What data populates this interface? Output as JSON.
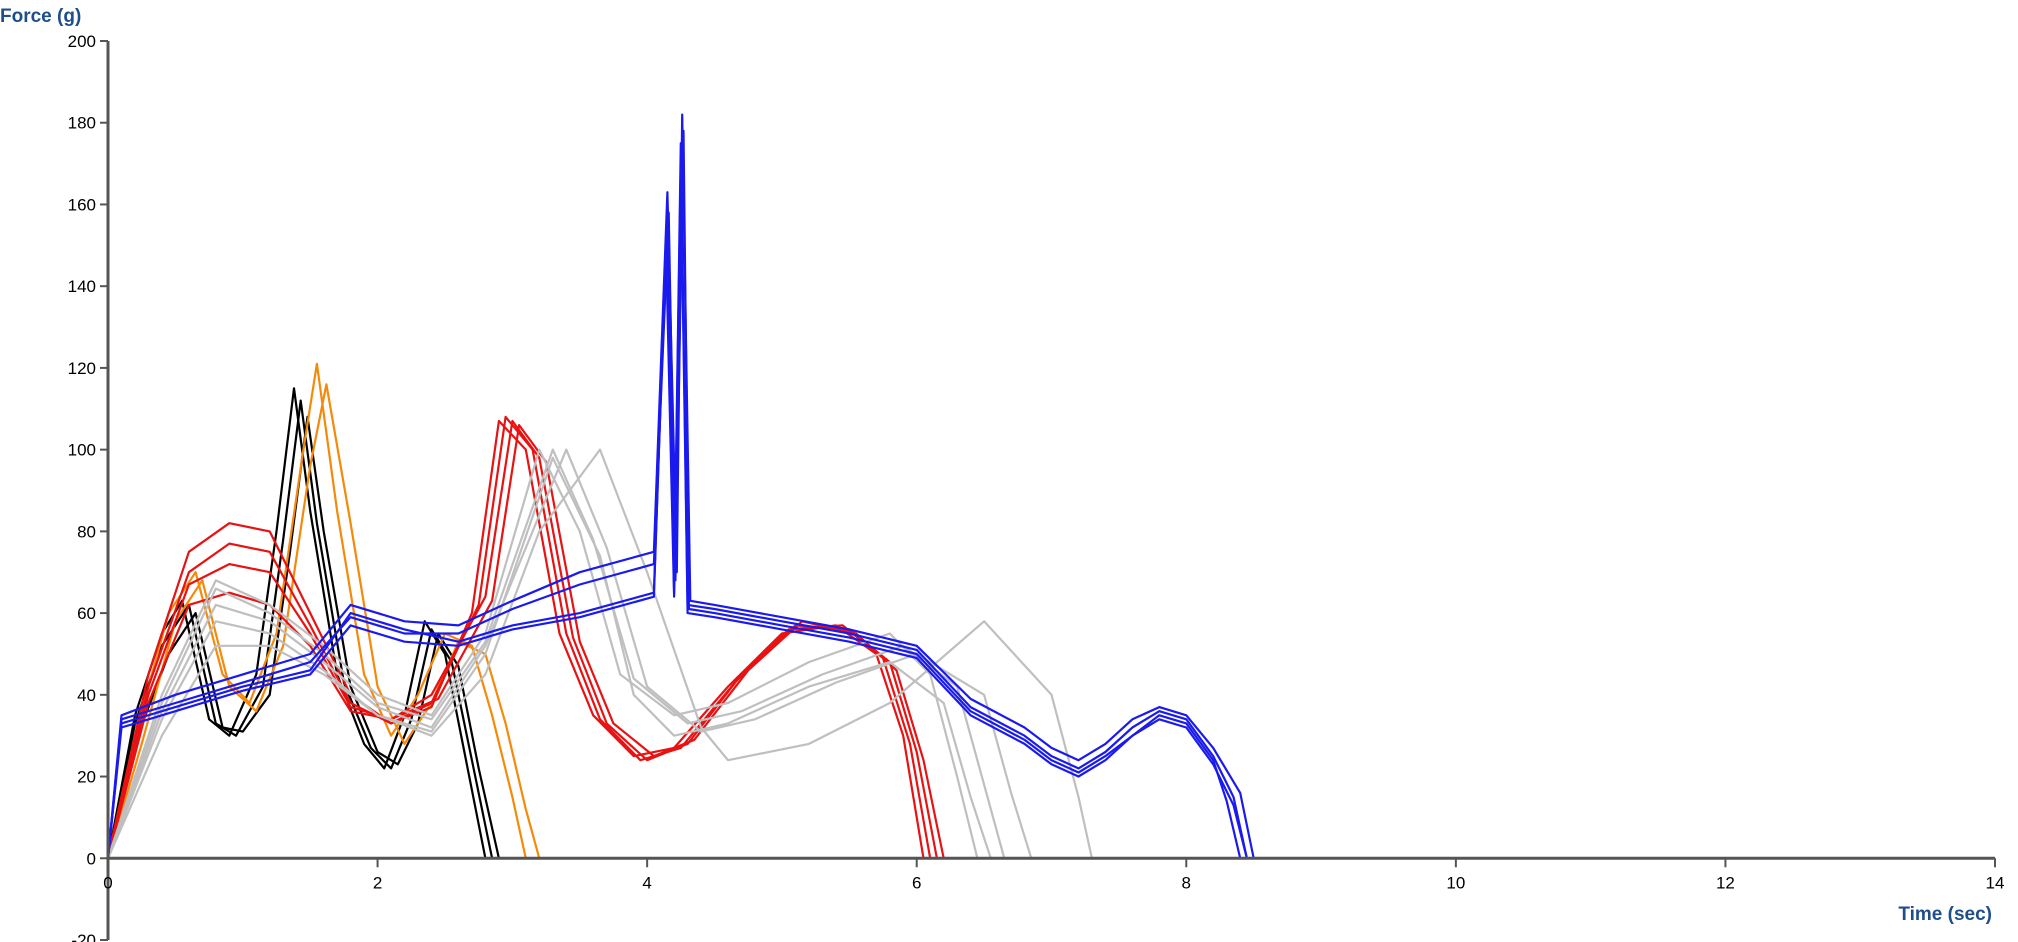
{
  "chart_data": {
    "type": "line",
    "title": "",
    "xlabel": "Time (sec)",
    "ylabel": "Force (g)",
    "xlim": [
      0,
      14
    ],
    "ylim": [
      -20,
      200
    ],
    "xticks": [
      0,
      2,
      4,
      6,
      8,
      10,
      12,
      14
    ],
    "yticks": [
      -20,
      0,
      20,
      40,
      60,
      80,
      100,
      120,
      140,
      160,
      180,
      200
    ],
    "grid": false,
    "legend": "none",
    "series": [
      {
        "color": "#000000",
        "x": [
          0,
          0.2,
          0.4,
          0.55,
          0.75,
          0.9,
          1.1,
          1.25,
          1.38,
          1.5,
          1.7,
          1.9,
          2.05,
          2.2,
          2.35,
          2.5,
          2.65,
          2.8,
          4.5
        ],
        "y": [
          0,
          35,
          55,
          63,
          34,
          30,
          45,
          80,
          115,
          85,
          45,
          28,
          22,
          35,
          58,
          50,
          25,
          0,
          0
        ]
      },
      {
        "color": "#000000",
        "x": [
          0,
          0.2,
          0.4,
          0.6,
          0.8,
          0.95,
          1.15,
          1.3,
          1.43,
          1.55,
          1.75,
          1.95,
          2.1,
          2.25,
          2.4,
          2.55,
          2.7,
          2.85
        ],
        "y": [
          0,
          33,
          52,
          62,
          33,
          30,
          42,
          78,
          112,
          82,
          43,
          27,
          22,
          34,
          56,
          48,
          24,
          0
        ]
      },
      {
        "color": "#000000",
        "x": [
          0,
          0.22,
          0.45,
          0.65,
          0.85,
          1.0,
          1.2,
          1.35,
          1.48,
          1.6,
          1.8,
          2.0,
          2.15,
          2.3,
          2.45,
          2.6,
          2.75,
          2.9
        ],
        "y": [
          0,
          30,
          50,
          60,
          32,
          31,
          40,
          75,
          108,
          80,
          42,
          26,
          23,
          33,
          55,
          47,
          22,
          0
        ]
      },
      {
        "color": "#f5890a",
        "x": [
          0,
          0.2,
          0.45,
          0.65,
          0.85,
          1.05,
          1.25,
          1.45,
          1.55,
          1.7,
          1.9,
          2.1,
          2.3,
          2.5,
          2.7,
          2.85,
          3.0,
          3.1,
          6.0
        ],
        "y": [
          0,
          30,
          60,
          70,
          45,
          38,
          55,
          100,
          121,
          85,
          45,
          30,
          40,
          55,
          52,
          35,
          15,
          0,
          0
        ]
      },
      {
        "color": "#f5890a",
        "x": [
          0,
          0.25,
          0.5,
          0.7,
          0.9,
          1.1,
          1.3,
          1.5,
          1.62,
          1.8,
          2.0,
          2.2,
          2.4,
          2.6,
          2.8,
          2.95,
          3.1,
          3.2
        ],
        "y": [
          0,
          28,
          58,
          68,
          42,
          36,
          52,
          96,
          116,
          82,
          42,
          28,
          38,
          53,
          50,
          33,
          12,
          0
        ]
      },
      {
        "color": "#e81212",
        "x": [
          0,
          0.3,
          0.6,
          0.9,
          1.2,
          1.5,
          1.8,
          2.1,
          2.4,
          2.7,
          2.9,
          3.1,
          3.35,
          3.6,
          3.9,
          4.2,
          4.6,
          5.0,
          5.4,
          5.7,
          5.9,
          6.05,
          8.0
        ],
        "y": [
          0,
          45,
          75,
          82,
          80,
          60,
          40,
          33,
          37,
          60,
          107,
          100,
          55,
          35,
          25,
          27,
          42,
          55,
          57,
          50,
          30,
          0,
          0
        ]
      },
      {
        "color": "#e81212",
        "x": [
          0,
          0.3,
          0.6,
          0.9,
          1.2,
          1.5,
          1.8,
          2.1,
          2.4,
          2.75,
          2.95,
          3.15,
          3.4,
          3.65,
          3.95,
          4.25,
          4.65,
          5.05,
          5.45,
          5.75,
          5.95,
          6.1
        ],
        "y": [
          0,
          42,
          70,
          77,
          75,
          57,
          38,
          33,
          38,
          62,
          108,
          100,
          55,
          34,
          24,
          27,
          43,
          56,
          57,
          49,
          28,
          0
        ]
      },
      {
        "color": "#e81212",
        "x": [
          0,
          0.3,
          0.6,
          0.9,
          1.2,
          1.5,
          1.8,
          2.1,
          2.4,
          2.8,
          3.0,
          3.2,
          3.45,
          3.7,
          4.0,
          4.3,
          4.7,
          5.1,
          5.5,
          5.8,
          6.0,
          6.15
        ],
        "y": [
          0,
          38,
          62,
          65,
          62,
          52,
          36,
          34,
          40,
          64,
          107,
          98,
          54,
          33,
          24,
          28,
          45,
          57,
          56,
          48,
          26,
          0
        ]
      },
      {
        "color": "#e81212",
        "x": [
          0,
          0.3,
          0.6,
          0.9,
          1.2,
          1.5,
          1.8,
          2.1,
          2.45,
          2.85,
          3.05,
          3.25,
          3.5,
          3.75,
          4.05,
          4.35,
          4.75,
          5.15,
          5.55,
          5.85,
          6.05,
          6.2
        ],
        "y": [
          0,
          40,
          67,
          72,
          70,
          55,
          37,
          34,
          39,
          63,
          106,
          97,
          53,
          33,
          25,
          29,
          46,
          58,
          55,
          46,
          24,
          0
        ]
      },
      {
        "color": "#bfbfbf",
        "x": [
          0,
          0.4,
          0.8,
          1.2,
          1.6,
          2.0,
          2.4,
          2.8,
          3.2,
          3.5,
          3.8,
          4.2,
          4.6,
          5.2,
          5.8,
          6.1,
          6.3,
          6.45
        ],
        "y": [
          0,
          40,
          68,
          62,
          52,
          40,
          35,
          55,
          100,
          80,
          45,
          35,
          38,
          48,
          55,
          45,
          20,
          0
        ]
      },
      {
        "color": "#bfbfbf",
        "x": [
          0,
          0.4,
          0.8,
          1.2,
          1.6,
          2.0,
          2.4,
          2.8,
          3.3,
          3.6,
          3.9,
          4.3,
          4.7,
          5.3,
          5.9,
          6.3,
          6.5,
          6.65
        ],
        "y": [
          0,
          38,
          66,
          60,
          50,
          38,
          34,
          53,
          100,
          78,
          44,
          33,
          36,
          45,
          52,
          42,
          18,
          0
        ]
      },
      {
        "color": "#bfbfbf",
        "x": [
          0,
          0.4,
          0.8,
          1.2,
          1.6,
          2.0,
          2.4,
          2.8,
          3.4,
          3.7,
          4.0,
          4.4,
          4.8,
          5.4,
          6.0,
          6.5,
          6.7,
          6.85
        ],
        "y": [
          0,
          36,
          62,
          58,
          48,
          37,
          32,
          52,
          100,
          76,
          42,
          31,
          34,
          43,
          50,
          40,
          16,
          0
        ]
      },
      {
        "color": "#bfbfbf",
        "x": [
          0,
          0.4,
          0.8,
          1.2,
          1.6,
          2.0,
          2.4,
          2.8,
          3.3,
          3.65,
          3.9,
          4.2,
          4.6,
          5.2,
          5.8,
          6.2,
          6.4,
          6.55
        ],
        "y": [
          0,
          34,
          58,
          55,
          46,
          35,
          31,
          50,
          98,
          74,
          40,
          30,
          33,
          42,
          48,
          38,
          15,
          0
        ]
      },
      {
        "color": "#bfbfbf",
        "x": [
          0,
          0.4,
          0.8,
          1.2,
          1.6,
          2.0,
          2.4,
          2.8,
          3.2,
          3.65,
          4.0,
          4.4,
          4.6,
          5.2,
          5.8,
          6.5,
          7.0,
          7.2,
          7.3
        ],
        "y": [
          0,
          30,
          52,
          52,
          45,
          35,
          30,
          45,
          80,
          100,
          70,
          32,
          24,
          28,
          38,
          58,
          40,
          15,
          0
        ]
      },
      {
        "color": "#1a1aee",
        "x": [
          0,
          0.1,
          0.5,
          1.0,
          1.5,
          1.8,
          2.2,
          2.6,
          3.0,
          3.5,
          4.05,
          4.15,
          4.2,
          4.25,
          4.3,
          4.5,
          5.0,
          5.5,
          6.0,
          6.4,
          6.8,
          7.0,
          7.2,
          7.4,
          7.6,
          7.8,
          8.0,
          8.2,
          8.35,
          8.45,
          12.7
        ],
        "y": [
          0,
          33,
          37,
          42,
          46,
          60,
          56,
          53,
          57,
          60,
          65,
          160,
          65,
          175,
          62,
          61,
          58,
          55,
          51,
          37,
          30,
          25,
          22,
          26,
          32,
          36,
          34,
          25,
          15,
          0,
          0
        ]
      },
      {
        "color": "#1a1aee",
        "x": [
          0,
          0.1,
          0.5,
          1.0,
          1.5,
          1.8,
          2.2,
          2.6,
          3.0,
          3.5,
          4.05,
          4.15,
          4.22,
          4.26,
          4.32,
          4.5,
          5.0,
          5.5,
          6.0,
          6.4,
          6.8,
          7.0,
          7.2,
          7.4,
          7.6,
          7.8,
          8.0,
          8.2,
          8.4,
          8.5
        ],
        "y": [
          0,
          35,
          40,
          45,
          50,
          62,
          58,
          57,
          63,
          70,
          75,
          163,
          70,
          182,
          63,
          62,
          59,
          56,
          52,
          39,
          32,
          27,
          24,
          28,
          34,
          37,
          35,
          27,
          16,
          0
        ]
      },
      {
        "color": "#1a1aee",
        "x": [
          0,
          0.1,
          0.5,
          1.0,
          1.5,
          1.8,
          2.2,
          2.6,
          3.0,
          3.5,
          4.05,
          4.16,
          4.21,
          4.27,
          4.31,
          4.5,
          5.0,
          5.5,
          6.0,
          6.4,
          6.8,
          7.0,
          7.2,
          7.4,
          7.6,
          7.8,
          8.0,
          8.2,
          8.3,
          8.4
        ],
        "y": [
          0,
          34,
          38,
          43,
          48,
          59,
          55,
          55,
          61,
          67,
          72,
          158,
          68,
          178,
          61,
          60,
          57,
          54,
          50,
          36,
          29,
          24,
          21,
          25,
          30,
          35,
          33,
          24,
          14,
          0
        ]
      },
      {
        "color": "#1a1aee",
        "x": [
          0,
          0.1,
          0.5,
          1.0,
          1.5,
          1.8,
          2.2,
          2.6,
          3.0,
          3.5,
          4.05,
          4.14,
          4.2,
          4.25,
          4.3,
          4.5,
          5.0,
          5.5,
          6.0,
          6.4,
          6.8,
          7.0,
          7.2,
          7.4,
          7.6,
          7.8,
          8.0,
          8.2,
          8.35,
          8.45
        ],
        "y": [
          0,
          32,
          36,
          41,
          45,
          57,
          53,
          52,
          56,
          59,
          64,
          150,
          64,
          170,
          60,
          59,
          56,
          53,
          49,
          35,
          28,
          23,
          20,
          24,
          30,
          34,
          32,
          23,
          13,
          0
        ]
      }
    ]
  }
}
